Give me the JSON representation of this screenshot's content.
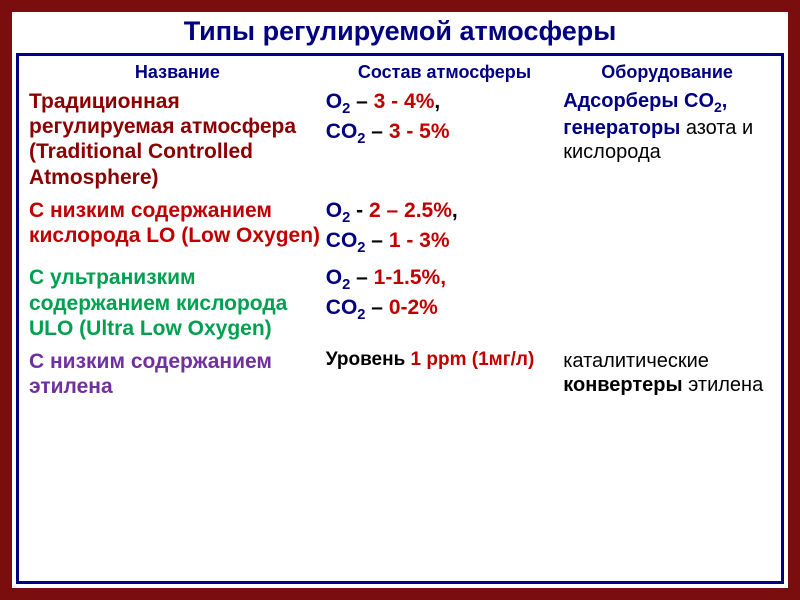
{
  "title": "Типы регулируемой атмосферы",
  "headers": {
    "col1": "Название",
    "col2": "Состав атмосферы",
    "col3": "Оборудование"
  },
  "colors": {
    "frame_outer": "#7a0e0e",
    "frame_inner": "#000080",
    "navy": "#000080",
    "red": "#c00000",
    "dark_red": "#8b0000",
    "purple": "#7030a0",
    "green": "#00a050",
    "black": "#000000"
  },
  "rows": [
    {
      "name_color": "#8b0000",
      "name": "Традиционная регулируемая атмосфера (Traditional Controlled Atmosphere)",
      "comp": {
        "o2_val": "3 - 4%",
        "co2_val": "3 - 5%",
        "dash1": " – ",
        "dash2": " – "
      },
      "equip": [
        {
          "text": "Адсорберы CO",
          "sub": "2",
          "tail": ",",
          "color": "#000080",
          "weight": "bold"
        },
        {
          "text": " генераторы",
          "color": "#000080",
          "weight": "bold"
        },
        {
          "text": " азота и кислорода",
          "color": "#000000",
          "weight": "normal"
        }
      ]
    },
    {
      "name_color": "#c00000",
      "name": "С низким содержанием кислорода LO (Low Oxygen)",
      "comp": {
        "o2_val": "2 – 2.5%",
        "co2_val": "1 - 3%",
        "dash1": " - ",
        "dash2": " – "
      },
      "equip": []
    },
    {
      "name_color": "#00a050",
      "name": "С ультранизким содержанием кислорода ULO (Ultra Low Oxygen)",
      "comp": {
        "o2_val": "1-1.5%,",
        "co2_val": "0-2%",
        "dash1": " – ",
        "dash2": " – "
      },
      "equip": []
    },
    {
      "name_color": "#7030a0",
      "name": "С низким содержанием этилена",
      "comp_plain": {
        "prefix": "Уровень ",
        "value": "1 ppm (1мг/л)"
      },
      "equip": [
        {
          "text": "каталитические ",
          "color": "#000000",
          "weight": "normal"
        },
        {
          "text": "конвертеры ",
          "color": "#000000",
          "weight": "bold"
        },
        {
          "text": "этилена",
          "color": "#000000",
          "weight": "normal"
        }
      ]
    }
  ]
}
